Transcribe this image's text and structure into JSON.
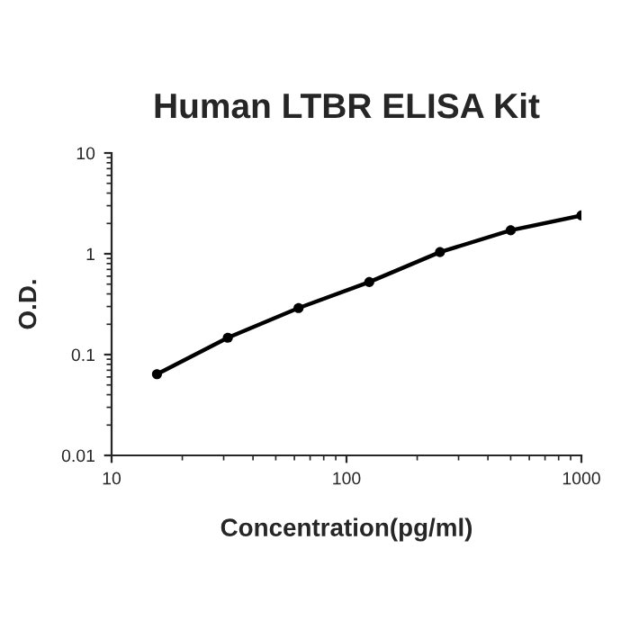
{
  "chart_data": {
    "type": "line",
    "title": "Human LTBR ELISA Kit",
    "xlabel": "Concentration(pg/ml)",
    "ylabel": "O.D.",
    "x": [
      15.6,
      31.25,
      62.5,
      125,
      250,
      500,
      1000
    ],
    "series": [
      {
        "color": "#000000",
        "values": [
          0.064,
          0.147,
          0.29,
          0.525,
          1.04,
          1.71,
          2.4
        ]
      }
    ],
    "log": "xy",
    "xlim": [
      10,
      1000
    ],
    "ylim": [
      0.01,
      10
    ],
    "xticks": [
      10,
      100,
      1000
    ],
    "yticks": [
      0.01,
      0.1,
      1,
      10
    ],
    "marker": "circle",
    "line_style": "solid",
    "grid": false,
    "legend": false
  }
}
